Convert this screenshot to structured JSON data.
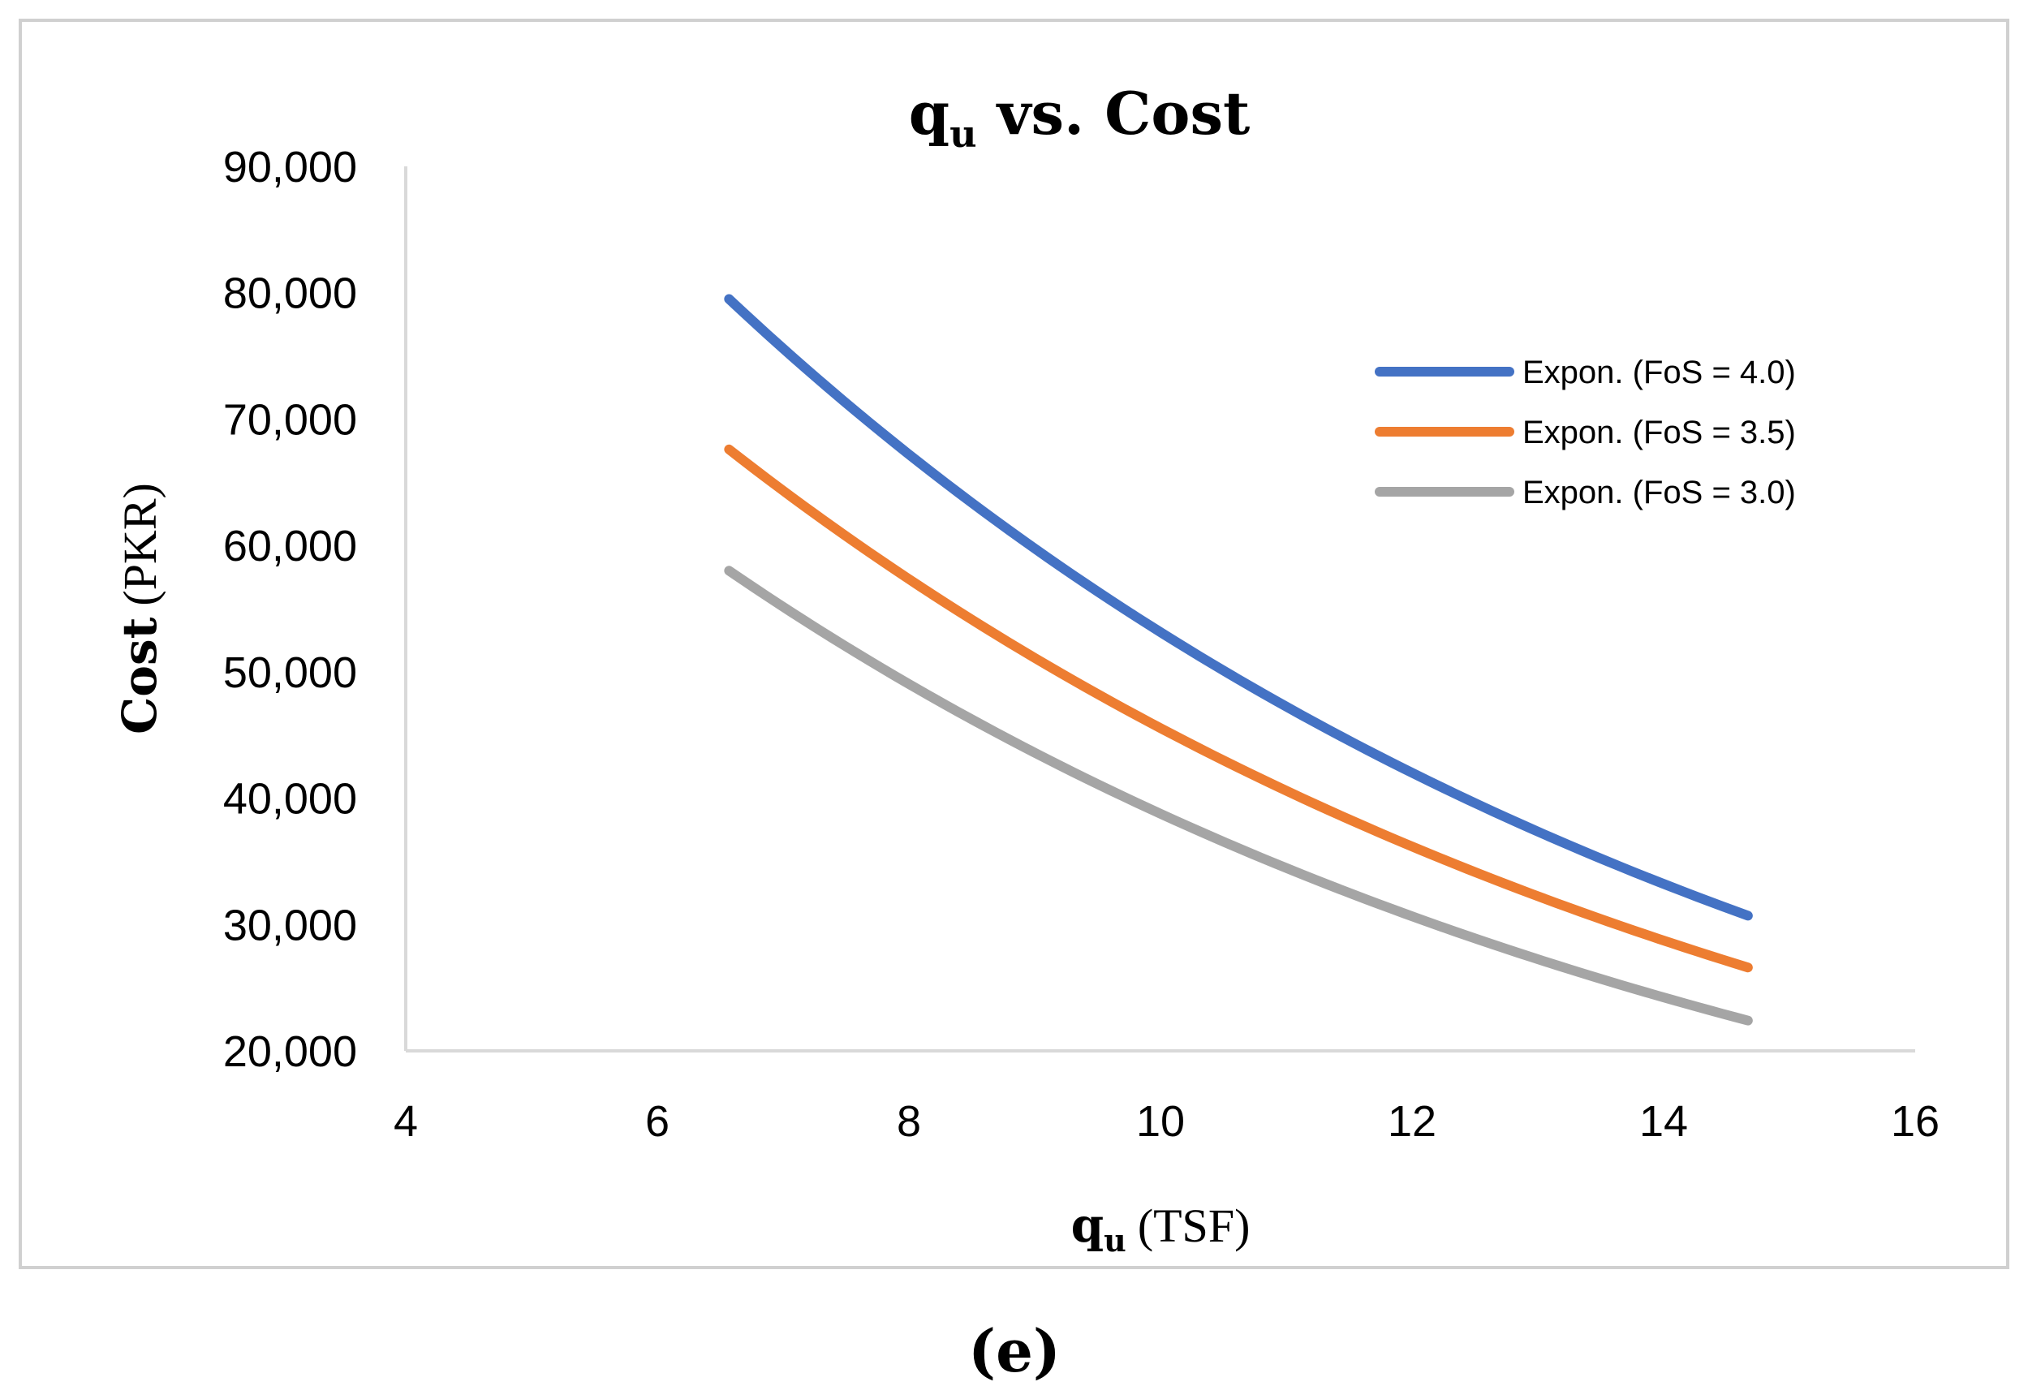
{
  "chart_data": {
    "type": "line",
    "title": "q",
    "title_subscript": "u",
    "title_rest": " vs. Cost",
    "xlabel_main": "q",
    "xlabel_subscript": "u",
    "xlabel_unit": "(TSF)",
    "ylabel_main": "Cost",
    "ylabel_unit": "(PKR)",
    "xlim": [
      4,
      16
    ],
    "ylim": [
      20000,
      90000
    ],
    "x_ticks": [
      4,
      6,
      8,
      10,
      12,
      14,
      16
    ],
    "y_ticks": [
      20000,
      30000,
      40000,
      50000,
      60000,
      70000,
      80000,
      90000
    ],
    "y_tick_labels": [
      "20,000",
      "30,000",
      "40,000",
      "50,000",
      "60,000",
      "70,000",
      "80,000",
      "90,000"
    ],
    "x_tick_labels": [
      "4",
      "6",
      "8",
      "10",
      "12",
      "14",
      "16"
    ],
    "legend_position": "top-right",
    "series": [
      {
        "name": "Expon. (FoS = 4.0)",
        "color": "#4472C4",
        "x": [
          6.57,
          14.67
        ],
        "y": [
          79500,
          30700
        ]
      },
      {
        "name": "Expon. (FoS = 3.5)",
        "color": "#ED7D31",
        "x": [
          6.57,
          14.67
        ],
        "y": [
          67600,
          26600
        ]
      },
      {
        "name": "Expon. (FoS = 3.0)",
        "color": "#A5A5A5",
        "x": [
          6.57,
          14.67
        ],
        "y": [
          58000,
          22400
        ]
      }
    ]
  },
  "caption": "(e)"
}
